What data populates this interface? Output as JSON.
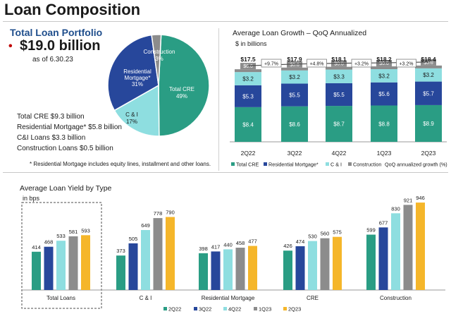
{
  "page": {
    "title": "Loan Composition"
  },
  "portfolio": {
    "heading": "Total Loan Portfolio",
    "bullet": "•",
    "total": "$19.0 billion",
    "as_of": "as of 6.30.23",
    "breakdown": [
      "Total CRE $9.3 billion",
      "Residential Mortgage* $5.8 billion",
      "C&I Loans $3.3 billion",
      "Construction Loans $0.5 billion"
    ],
    "footnote": "*  Residential Mortgage includes equity lines, installment and other loans."
  },
  "growth": {
    "title": "Average Loan Growth – QoQ Annualized",
    "unit": "$ in billions"
  },
  "yield": {
    "title": "Average Loan Yield by Type",
    "unit": "in bps"
  },
  "colors": {
    "cre": "#2a9d84",
    "mortgage": "#27479b",
    "ci": "#8edee0",
    "construction": "#8c8c8c",
    "q2_22": "#2a9d84",
    "q3_22": "#27479b",
    "q4_22": "#8edee0",
    "q1_23": "#8c8c8c",
    "q2_23": "#f5b62a"
  },
  "chart_data": [
    {
      "type": "pie",
      "title": "Total Loan Portfolio",
      "labels": [
        "Total CRE",
        "C & I",
        "Residential Mortgage*",
        "Construction"
      ],
      "values": [
        49,
        17,
        31,
        3
      ],
      "value_labels": [
        "49%",
        "17%",
        "31%",
        "3%"
      ]
    },
    {
      "type": "bar",
      "stacked": true,
      "title": "Average Loan Growth – QoQ Annualized",
      "ylabel": "$ in billions",
      "categories": [
        "2Q22",
        "3Q22",
        "4Q22",
        "1Q23",
        "2Q23"
      ],
      "series": [
        {
          "name": "Total CRE",
          "values": [
            8.4,
            8.6,
            8.7,
            8.8,
            8.9
          ],
          "labels": [
            "$8.4",
            "$8.6",
            "$8.7",
            "$8.8",
            "$8.9"
          ]
        },
        {
          "name": "Residential Mortgage*",
          "values": [
            5.3,
            5.5,
            5.5,
            5.6,
            5.7
          ],
          "labels": [
            "$5.3",
            "$5.5",
            "$5.5",
            "$5.6",
            "$5.7"
          ]
        },
        {
          "name": "C & I",
          "values": [
            3.2,
            3.2,
            3.3,
            3.2,
            3.2
          ],
          "labels": [
            "$3.2",
            "$3.2",
            "$3.3",
            "$3.2",
            "$3.2"
          ]
        },
        {
          "name": "Construction",
          "values": [
            0.6,
            0.6,
            0.6,
            0.6,
            0.6
          ],
          "labels": [
            "$0.6",
            "$0.6",
            "$0.6",
            "$0.6",
            "$0.6"
          ]
        }
      ],
      "totals": [
        17.5,
        17.9,
        18.1,
        18.2,
        18.4
      ],
      "total_labels": [
        "$17.5",
        "$17.9",
        "$18.1",
        "$18.2",
        "$18.4"
      ],
      "growth_labels": [
        "+9.7%",
        "+4.8%",
        "+3.2%",
        "+3.2%"
      ],
      "growth_series_name": "QoQ annualized growth (%)",
      "legend": [
        "Total CRE",
        "Residential Mortgage*",
        "C & I",
        "Construction",
        "QoQ annualized growth (%)"
      ]
    },
    {
      "type": "bar",
      "title": "Average Loan Yield by Type",
      "ylabel": "in bps",
      "categories": [
        "Total Loans",
        "C & I",
        "Residential Mortgage",
        "CRE",
        "Construction"
      ],
      "series": [
        {
          "name": "2Q22",
          "values": [
            414,
            373,
            398,
            426,
            599
          ]
        },
        {
          "name": "3Q22",
          "values": [
            468,
            505,
            417,
            474,
            677
          ]
        },
        {
          "name": "4Q22",
          "values": [
            533,
            649,
            440,
            530,
            830
          ]
        },
        {
          "name": "1Q23",
          "values": [
            581,
            778,
            458,
            560,
            921
          ]
        },
        {
          "name": "2Q23",
          "values": [
            593,
            790,
            477,
            575,
            946
          ]
        }
      ]
    }
  ]
}
